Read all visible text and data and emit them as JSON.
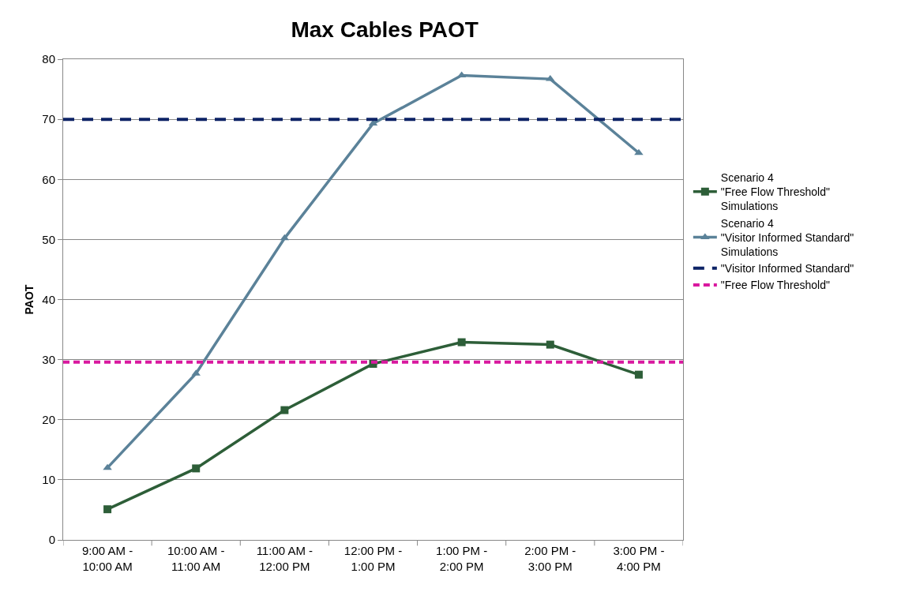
{
  "chart_data": {
    "type": "line",
    "title": "Max Cables PAOT",
    "ylabel": "PAOT",
    "categories": [
      "9:00 AM -\n10:00 AM",
      "10:00 AM -\n11:00 AM",
      "11:00 AM -\n12:00 PM",
      "12:00 PM -\n1:00 PM",
      "1:00 PM -\n2:00 PM",
      "2:00 PM -\n3:00 PM",
      "3:00 PM -\n4:00 PM"
    ],
    "series": [
      {
        "name": "Scenario 4\n\"Free Flow Threshold\"\nSimulations",
        "color": "#2d5e38",
        "marker": "square",
        "values": [
          5.1,
          11.9,
          21.6,
          29.3,
          32.9,
          32.5,
          27.5
        ]
      },
      {
        "name": "Scenario 4\n\"Visitor Informed Standard\"\nSimulations",
        "color": "#5b8299",
        "marker": "triangle",
        "values": [
          12,
          27.7,
          50.2,
          69.3,
          77.3,
          76.7,
          64.4
        ]
      }
    ],
    "ref_lines": [
      {
        "axis": "y",
        "value": 70,
        "label": "\"Visitor Informed Standard\"",
        "color": "#0d2366",
        "line_style": "dashed"
      },
      {
        "axis": "y",
        "value": 29.6,
        "label": "\"Free Flow Threshold\"",
        "color": "#d9189f",
        "line_style": "dotted"
      }
    ],
    "ylim": [
      0,
      80
    ],
    "yticks": [
      0,
      10,
      20,
      30,
      40,
      50,
      60,
      70,
      80
    ],
    "grid": "y",
    "legend": "right",
    "line_style": "solid"
  }
}
